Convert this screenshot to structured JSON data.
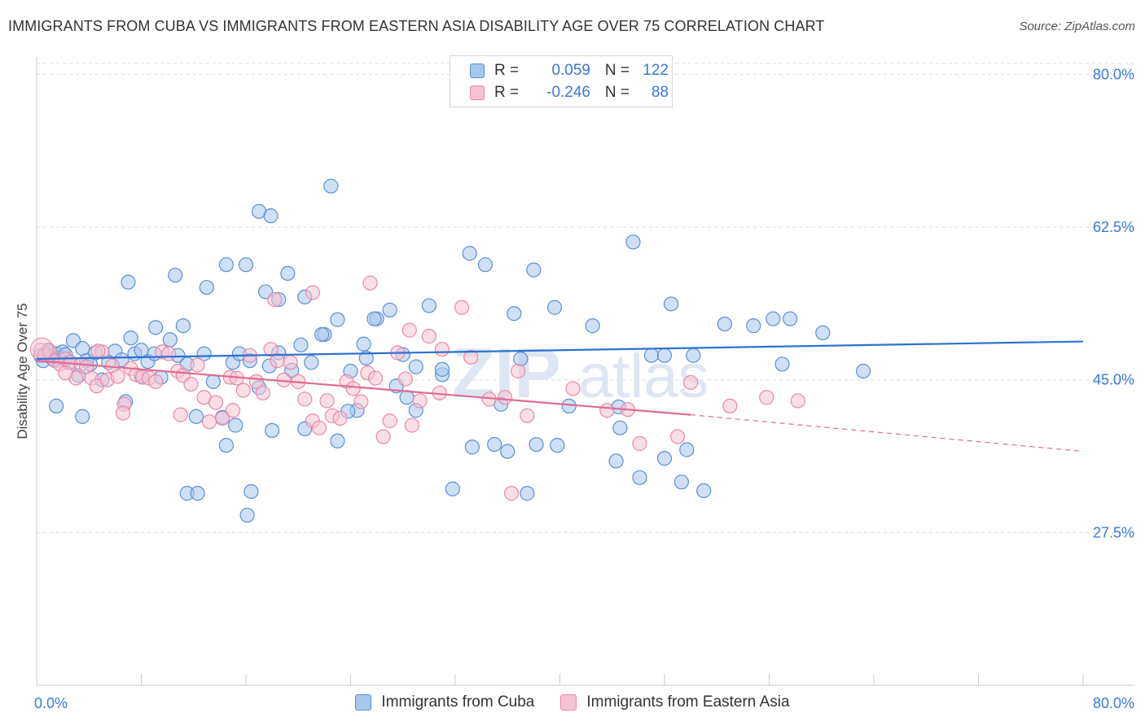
{
  "title": "IMMIGRANTS FROM CUBA VS IMMIGRANTS FROM EASTERN ASIA DISABILITY AGE OVER 75 CORRELATION CHART",
  "source": "Source: ZipAtlas.com",
  "watermark": {
    "zip": "ZIP",
    "atlas": "atlas"
  },
  "colors": {
    "blue_fill": "#a8c6ee",
    "blue_stroke": "#5b8fd6",
    "blue_line": "#2f72d0",
    "pink_fill": "#f6c2d2",
    "pink_stroke": "#e889a8",
    "pink_line": "#e06a92",
    "axis_label": "#3b78d8",
    "grid": "#dddddd"
  },
  "legend": [
    {
      "r_label": "R =",
      "r_value": "0.059",
      "n_label": "N =",
      "n_value": "122"
    },
    {
      "r_label": "R =",
      "r_value": "-0.246",
      "n_label": "N =",
      "n_value": "88"
    }
  ],
  "chart_data": {
    "type": "scatter",
    "title": "IMMIGRANTS FROM CUBA VS IMMIGRANTS FROM EASTERN ASIA DISABILITY AGE OVER 75 CORRELATION CHART",
    "xlabel": "",
    "ylabel": "Disability Age Over 75",
    "xlim": [
      0,
      80
    ],
    "ylim": [
      10,
      82
    ],
    "x_tick_labels": [
      "0.0%",
      "80.0%"
    ],
    "y_ticks": [
      27.5,
      45.0,
      62.5,
      80.0
    ],
    "y_tick_labels": [
      "27.5%",
      "45.0%",
      "62.5%",
      "80.0%"
    ],
    "grid": "horizontal dashed",
    "legend_position": "bottom",
    "series": [
      {
        "name": "Immigrants from Cuba",
        "color": "blue",
        "trend": {
          "x": [
            0,
            80
          ],
          "y": [
            47.4,
            49.4
          ]
        },
        "points": [
          [
            0.3,
            47.8
          ],
          [
            0.5,
            47.2
          ],
          [
            0.7,
            47.9
          ],
          [
            0.9,
            48.4
          ],
          [
            1.1,
            47.6
          ],
          [
            1.3,
            47.3
          ],
          [
            1.5,
            48.0
          ],
          [
            1.7,
            47.5
          ],
          [
            2.0,
            48.2
          ],
          [
            2.2,
            47.9
          ],
          [
            2.5,
            47.0
          ],
          [
            2.8,
            49.5
          ],
          [
            3.2,
            45.5
          ],
          [
            3.5,
            48.6
          ],
          [
            3.8,
            47.2
          ],
          [
            4.1,
            46.8
          ],
          [
            4.5,
            48.1
          ],
          [
            5.0,
            45.0
          ],
          [
            5.5,
            47.0
          ],
          [
            6.0,
            48.3
          ],
          [
            6.5,
            47.3
          ],
          [
            6.8,
            42.5
          ],
          [
            7.2,
            49.8
          ],
          [
            7.5,
            48.0
          ],
          [
            8.0,
            45.4
          ],
          [
            8.5,
            47.1
          ],
          [
            9.0,
            48.0
          ],
          [
            9.5,
            45.3
          ],
          [
            10.2,
            49.6
          ],
          [
            10.8,
            47.8
          ],
          [
            11.5,
            46.8
          ],
          [
            12.2,
            40.8
          ],
          [
            12.8,
            48.0
          ],
          [
            13.5,
            44.8
          ],
          [
            14.2,
            40.7
          ],
          [
            15.0,
            47.0
          ],
          [
            15.5,
            48.0
          ],
          [
            16.3,
            47.2
          ],
          [
            17.0,
            44.1
          ],
          [
            17.8,
            46.6
          ],
          [
            18.5,
            48.1
          ],
          [
            19.5,
            46.1
          ],
          [
            20.2,
            49.0
          ],
          [
            21.0,
            47.0
          ],
          [
            22.0,
            50.2
          ],
          [
            23.0,
            51.9
          ],
          [
            24.0,
            46.0
          ],
          [
            25.0,
            49.1
          ],
          [
            26.0,
            52.0
          ],
          [
            27.0,
            53.0
          ],
          [
            28.0,
            47.9
          ],
          [
            29.0,
            46.5
          ],
          [
            30.0,
            53.5
          ],
          [
            31.0,
            45.6
          ],
          [
            1.5,
            42.0
          ],
          [
            3.5,
            40.8
          ],
          [
            7.0,
            56.2
          ],
          [
            8.0,
            48.4
          ],
          [
            9.1,
            51.0
          ],
          [
            10.6,
            57.0
          ],
          [
            11.2,
            51.2
          ],
          [
            13.0,
            55.6
          ],
          [
            14.5,
            58.2
          ],
          [
            16.0,
            58.2
          ],
          [
            17.5,
            55.1
          ],
          [
            18.5,
            54.2
          ],
          [
            19.2,
            57.2
          ],
          [
            20.5,
            54.5
          ],
          [
            22.5,
            67.2
          ],
          [
            25.8,
            52.0
          ],
          [
            24.5,
            41.5
          ],
          [
            25.2,
            47.5
          ],
          [
            33.1,
            59.5
          ],
          [
            34.3,
            58.2
          ],
          [
            35.5,
            42.2
          ],
          [
            36.5,
            52.6
          ],
          [
            37.0,
            47.4
          ],
          [
            39.6,
            53.3
          ],
          [
            42.5,
            51.2
          ],
          [
            45.6,
            60.8
          ],
          [
            47.0,
            47.8
          ],
          [
            48.0,
            47.8
          ],
          [
            48.5,
            53.7
          ],
          [
            52.6,
            51.4
          ],
          [
            54.8,
            51.2
          ],
          [
            57.6,
            52.0
          ],
          [
            60.1,
            50.4
          ],
          [
            63.2,
            46.0
          ],
          [
            11.5,
            32.0
          ],
          [
            12.3,
            32.0
          ],
          [
            14.5,
            37.5
          ],
          [
            15.2,
            39.8
          ],
          [
            16.1,
            29.5
          ],
          [
            16.4,
            32.2
          ],
          [
            18.0,
            39.2
          ],
          [
            20.5,
            39.4
          ],
          [
            23.0,
            38.0
          ],
          [
            23.8,
            41.4
          ],
          [
            27.5,
            44.3
          ],
          [
            28.3,
            43.0
          ],
          [
            29.0,
            41.5
          ],
          [
            31.0,
            46.2
          ],
          [
            33.3,
            37.3
          ],
          [
            35.0,
            37.6
          ],
          [
            36.0,
            36.8
          ],
          [
            37.5,
            32.0
          ],
          [
            38.2,
            37.6
          ],
          [
            39.8,
            37.5
          ],
          [
            44.3,
            35.7
          ],
          [
            46.1,
            33.8
          ],
          [
            48.0,
            36.0
          ],
          [
            49.3,
            33.3
          ],
          [
            51.0,
            32.3
          ],
          [
            49.7,
            37.0
          ],
          [
            44.5,
            41.9
          ],
          [
            44.6,
            39.5
          ],
          [
            40.7,
            42.0
          ],
          [
            31.8,
            32.5
          ],
          [
            21.8,
            50.2
          ],
          [
            17.0,
            64.3
          ],
          [
            17.9,
            63.8
          ],
          [
            36.4,
            79.8
          ],
          [
            38.0,
            57.6
          ],
          [
            50.2,
            47.8
          ],
          [
            57.0,
            46.8
          ],
          [
            56.3,
            52.0
          ]
        ]
      },
      {
        "name": "Immigrants from Eastern Asia",
        "color": "pink",
        "trend": {
          "x": [
            0,
            50
          ],
          "y": [
            47.2,
            41.0
          ]
        },
        "trend_extension": {
          "x": [
            50,
            80
          ],
          "y": [
            41.0,
            36.8
          ]
        },
        "points": [
          [
            0.3,
            48.4
          ],
          [
            0.6,
            47.8
          ],
          [
            1.0,
            48.2
          ],
          [
            1.4,
            47.2
          ],
          [
            1.8,
            46.8
          ],
          [
            2.2,
            47.4
          ],
          [
            2.6,
            47.0
          ],
          [
            3.0,
            45.2
          ],
          [
            3.4,
            46.8
          ],
          [
            3.8,
            46.5
          ],
          [
            4.2,
            45.2
          ],
          [
            4.6,
            44.3
          ],
          [
            5.0,
            48.2
          ],
          [
            5.4,
            45.0
          ],
          [
            5.8,
            46.6
          ],
          [
            6.2,
            45.4
          ],
          [
            6.7,
            42.2
          ],
          [
            7.2,
            46.3
          ],
          [
            7.6,
            45.6
          ],
          [
            8.1,
            45.3
          ],
          [
            8.6,
            45.2
          ],
          [
            9.1,
            44.8
          ],
          [
            9.6,
            48.2
          ],
          [
            10.1,
            48.0
          ],
          [
            10.8,
            46.0
          ],
          [
            11.2,
            45.5
          ],
          [
            11.8,
            44.5
          ],
          [
            12.3,
            46.7
          ],
          [
            12.8,
            43.0
          ],
          [
            13.2,
            40.2
          ],
          [
            13.7,
            42.4
          ],
          [
            14.2,
            40.6
          ],
          [
            14.8,
            45.3
          ],
          [
            15.3,
            45.2
          ],
          [
            15.8,
            43.8
          ],
          [
            16.3,
            47.8
          ],
          [
            16.8,
            44.8
          ],
          [
            17.3,
            43.5
          ],
          [
            17.9,
            48.5
          ],
          [
            18.4,
            47.2
          ],
          [
            18.9,
            45.0
          ],
          [
            19.4,
            47.0
          ],
          [
            20.0,
            44.8
          ],
          [
            20.5,
            42.8
          ],
          [
            21.1,
            40.3
          ],
          [
            21.6,
            39.5
          ],
          [
            22.2,
            42.6
          ],
          [
            22.6,
            40.9
          ],
          [
            23.2,
            40.6
          ],
          [
            23.7,
            44.8
          ],
          [
            24.2,
            44.0
          ],
          [
            24.8,
            42.5
          ],
          [
            25.3,
            45.8
          ],
          [
            25.9,
            45.2
          ],
          [
            26.5,
            38.5
          ],
          [
            27.0,
            40.3
          ],
          [
            27.6,
            48.1
          ],
          [
            28.2,
            45.1
          ],
          [
            28.7,
            39.8
          ],
          [
            29.3,
            42.6
          ],
          [
            30.0,
            50.0
          ],
          [
            31.0,
            48.5
          ],
          [
            32.5,
            53.3
          ],
          [
            33.2,
            47.6
          ],
          [
            34.6,
            42.8
          ],
          [
            35.8,
            43.0
          ],
          [
            36.3,
            32.0
          ],
          [
            36.8,
            46.0
          ],
          [
            37.5,
            40.9
          ],
          [
            41.0,
            44.0
          ],
          [
            43.6,
            41.5
          ],
          [
            45.2,
            41.6
          ],
          [
            46.1,
            37.7
          ],
          [
            49.0,
            38.5
          ],
          [
            50.0,
            44.7
          ],
          [
            53.0,
            42.0
          ],
          [
            55.8,
            43.0
          ],
          [
            58.2,
            42.6
          ],
          [
            18.2,
            54.2
          ],
          [
            21.1,
            55.0
          ],
          [
            25.5,
            56.1
          ],
          [
            15.0,
            41.5
          ],
          [
            11.0,
            41.0
          ],
          [
            4.7,
            48.3
          ],
          [
            2.2,
            45.8
          ],
          [
            6.6,
            41.2
          ],
          [
            28.5,
            50.7
          ],
          [
            30.8,
            43.5
          ]
        ]
      }
    ]
  },
  "bottom_legend": [
    {
      "label": "Immigrants from Cuba"
    },
    {
      "label": "Immigrants from Eastern Asia"
    }
  ]
}
